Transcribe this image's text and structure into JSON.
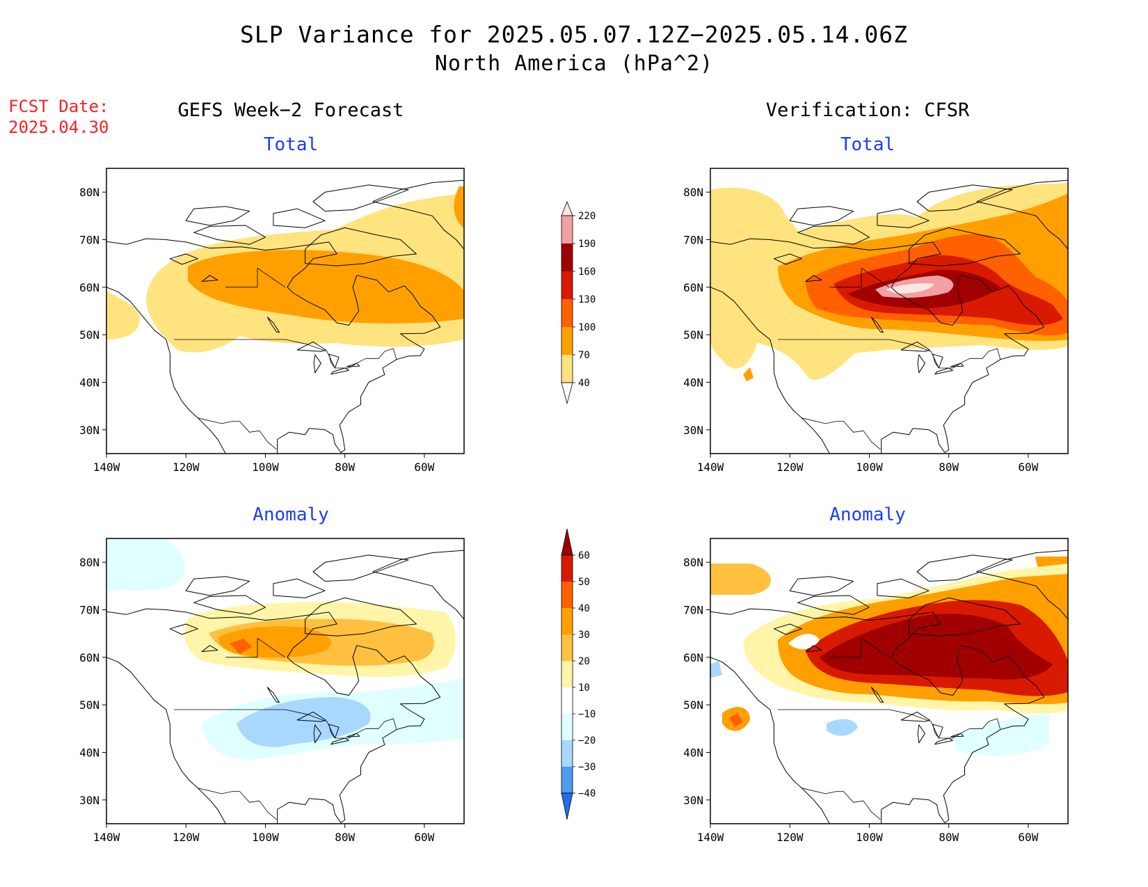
{
  "title": {
    "line1": "SLP Variance for 2025.05.07.12Z−2025.05.14.06Z",
    "line2": "North America (hPa^2)"
  },
  "fcst": {
    "label": "FCST Date:",
    "date": "2025.04.30"
  },
  "columns": {
    "left": "GEFS Week−2 Forecast",
    "right": "Verification: CFSR"
  },
  "panels": [
    {
      "id": "gefs-total",
      "subtitle": "Total",
      "field": "total"
    },
    {
      "id": "cfsr-total",
      "subtitle": "Total",
      "field": "total"
    },
    {
      "id": "gefs-anomaly",
      "subtitle": "Anomaly",
      "field": "anomaly"
    },
    {
      "id": "cfsr-anomaly",
      "subtitle": "Anomaly",
      "field": "anomaly"
    }
  ],
  "axes": {
    "lat_labels": [
      "80N",
      "70N",
      "60N",
      "50N",
      "40N",
      "30N"
    ],
    "lat_values": [
      80,
      70,
      60,
      50,
      40,
      30
    ],
    "lon_labels": [
      "140W",
      "120W",
      "100W",
      "80W",
      "60W"
    ],
    "lon_values": [
      -140,
      -120,
      -100,
      -80,
      -60
    ],
    "lat_range": [
      25,
      85
    ],
    "lon_range": [
      -140,
      -50
    ]
  },
  "colorbars": {
    "total": {
      "labels": [
        "220",
        "190",
        "160",
        "130",
        "100",
        "70",
        "40"
      ],
      "colors": [
        "#fde6e6",
        "#f2a0a4",
        "#a00000",
        "#d81a00",
        "#ff6000",
        "#ffa000",
        "#ffe37e"
      ]
    },
    "anomaly": {
      "labels": [
        "60",
        "50",
        "40",
        "30",
        "20",
        "10",
        "−10",
        "−20",
        "−30",
        "−40"
      ],
      "colors": [
        "#a00000",
        "#d81a00",
        "#ff6000",
        "#ffa000",
        "#ffc040",
        "#fff5a8",
        "#ffffff",
        "#e0ffff",
        "#a8d8ff",
        "#4c9cf0",
        "#1e6fe8"
      ]
    }
  },
  "colors": {
    "title_red": "#ff2020",
    "subtitle_blue": "#1a3cff"
  }
}
